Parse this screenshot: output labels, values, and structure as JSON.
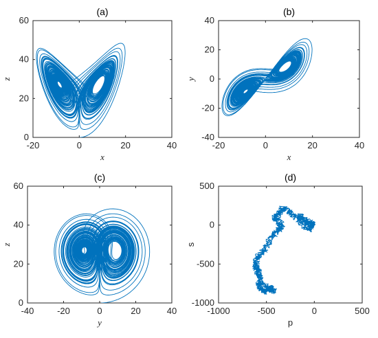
{
  "figure": {
    "line_color": "#0072BD"
  },
  "chart_data": [
    {
      "type": "line",
      "title": "(a)",
      "xlabel": "x",
      "ylabel": "z",
      "xlim": [
        -20,
        40
      ],
      "ylim": [
        0,
        60
      ],
      "xticks": [
        -20,
        0,
        20,
        40
      ],
      "yticks": [
        0,
        20,
        40,
        60
      ],
      "series": [
        {
          "generator": "lorenz",
          "parameters": {
            "sigma": 10,
            "rho": 28,
            "beta": 2.6667
          },
          "x_variable": "x",
          "y_variable": "z",
          "initial": [
            0,
            1,
            0
          ]
        }
      ]
    },
    {
      "type": "line",
      "title": "(b)",
      "xlabel": "x",
      "ylabel": "y",
      "xlim": [
        -20,
        40
      ],
      "ylim": [
        -40,
        40
      ],
      "xticks": [
        -20,
        0,
        20,
        40
      ],
      "yticks": [
        -40,
        -20,
        0,
        20,
        40
      ],
      "series": [
        {
          "generator": "lorenz",
          "parameters": {
            "sigma": 10,
            "rho": 28,
            "beta": 2.6667
          },
          "x_variable": "x",
          "y_variable": "y",
          "initial": [
            0,
            1,
            0
          ]
        }
      ]
    },
    {
      "type": "line",
      "title": "(c)",
      "xlabel": "y",
      "ylabel": "z",
      "xlim": [
        -40,
        40
      ],
      "ylim": [
        0,
        60
      ],
      "xticks": [
        -40,
        -20,
        0,
        20,
        40
      ],
      "yticks": [
        0,
        20,
        40,
        60
      ],
      "series": [
        {
          "generator": "lorenz",
          "parameters": {
            "sigma": 10,
            "rho": 28,
            "beta": 2.6667
          },
          "x_variable": "y",
          "y_variable": "z",
          "initial": [
            0,
            1,
            0
          ]
        }
      ]
    },
    {
      "type": "line",
      "title": "(d)",
      "xlabel": "p",
      "ylabel": "s",
      "xlim": [
        -1000,
        500
      ],
      "ylim": [
        -1000,
        500
      ],
      "xticks": [
        -1000,
        -500,
        0,
        500
      ],
      "yticks": [
        -1000,
        -500,
        0,
        500
      ],
      "series": [
        {
          "generator": "random-walk",
          "anchors": [
            [
              0,
              0
            ],
            [
              -150,
              120
            ],
            [
              -90,
              30
            ],
            [
              -20,
              10
            ],
            [
              -60,
              -60
            ],
            [
              -170,
              80
            ],
            [
              -250,
              160
            ],
            [
              -330,
              220
            ],
            [
              -370,
              150
            ],
            [
              -410,
              90
            ],
            [
              -340,
              10
            ],
            [
              -380,
              -70
            ],
            [
              -460,
              -180
            ],
            [
              -520,
              -320
            ],
            [
              -600,
              -420
            ],
            [
              -610,
              -560
            ],
            [
              -560,
              -660
            ],
            [
              -580,
              -780
            ],
            [
              -520,
              -870
            ],
            [
              -470,
              -800
            ],
            [
              -420,
              -850
            ],
            [
              -550,
              -760
            ],
            [
              -620,
              -500
            ]
          ]
        }
      ]
    }
  ]
}
